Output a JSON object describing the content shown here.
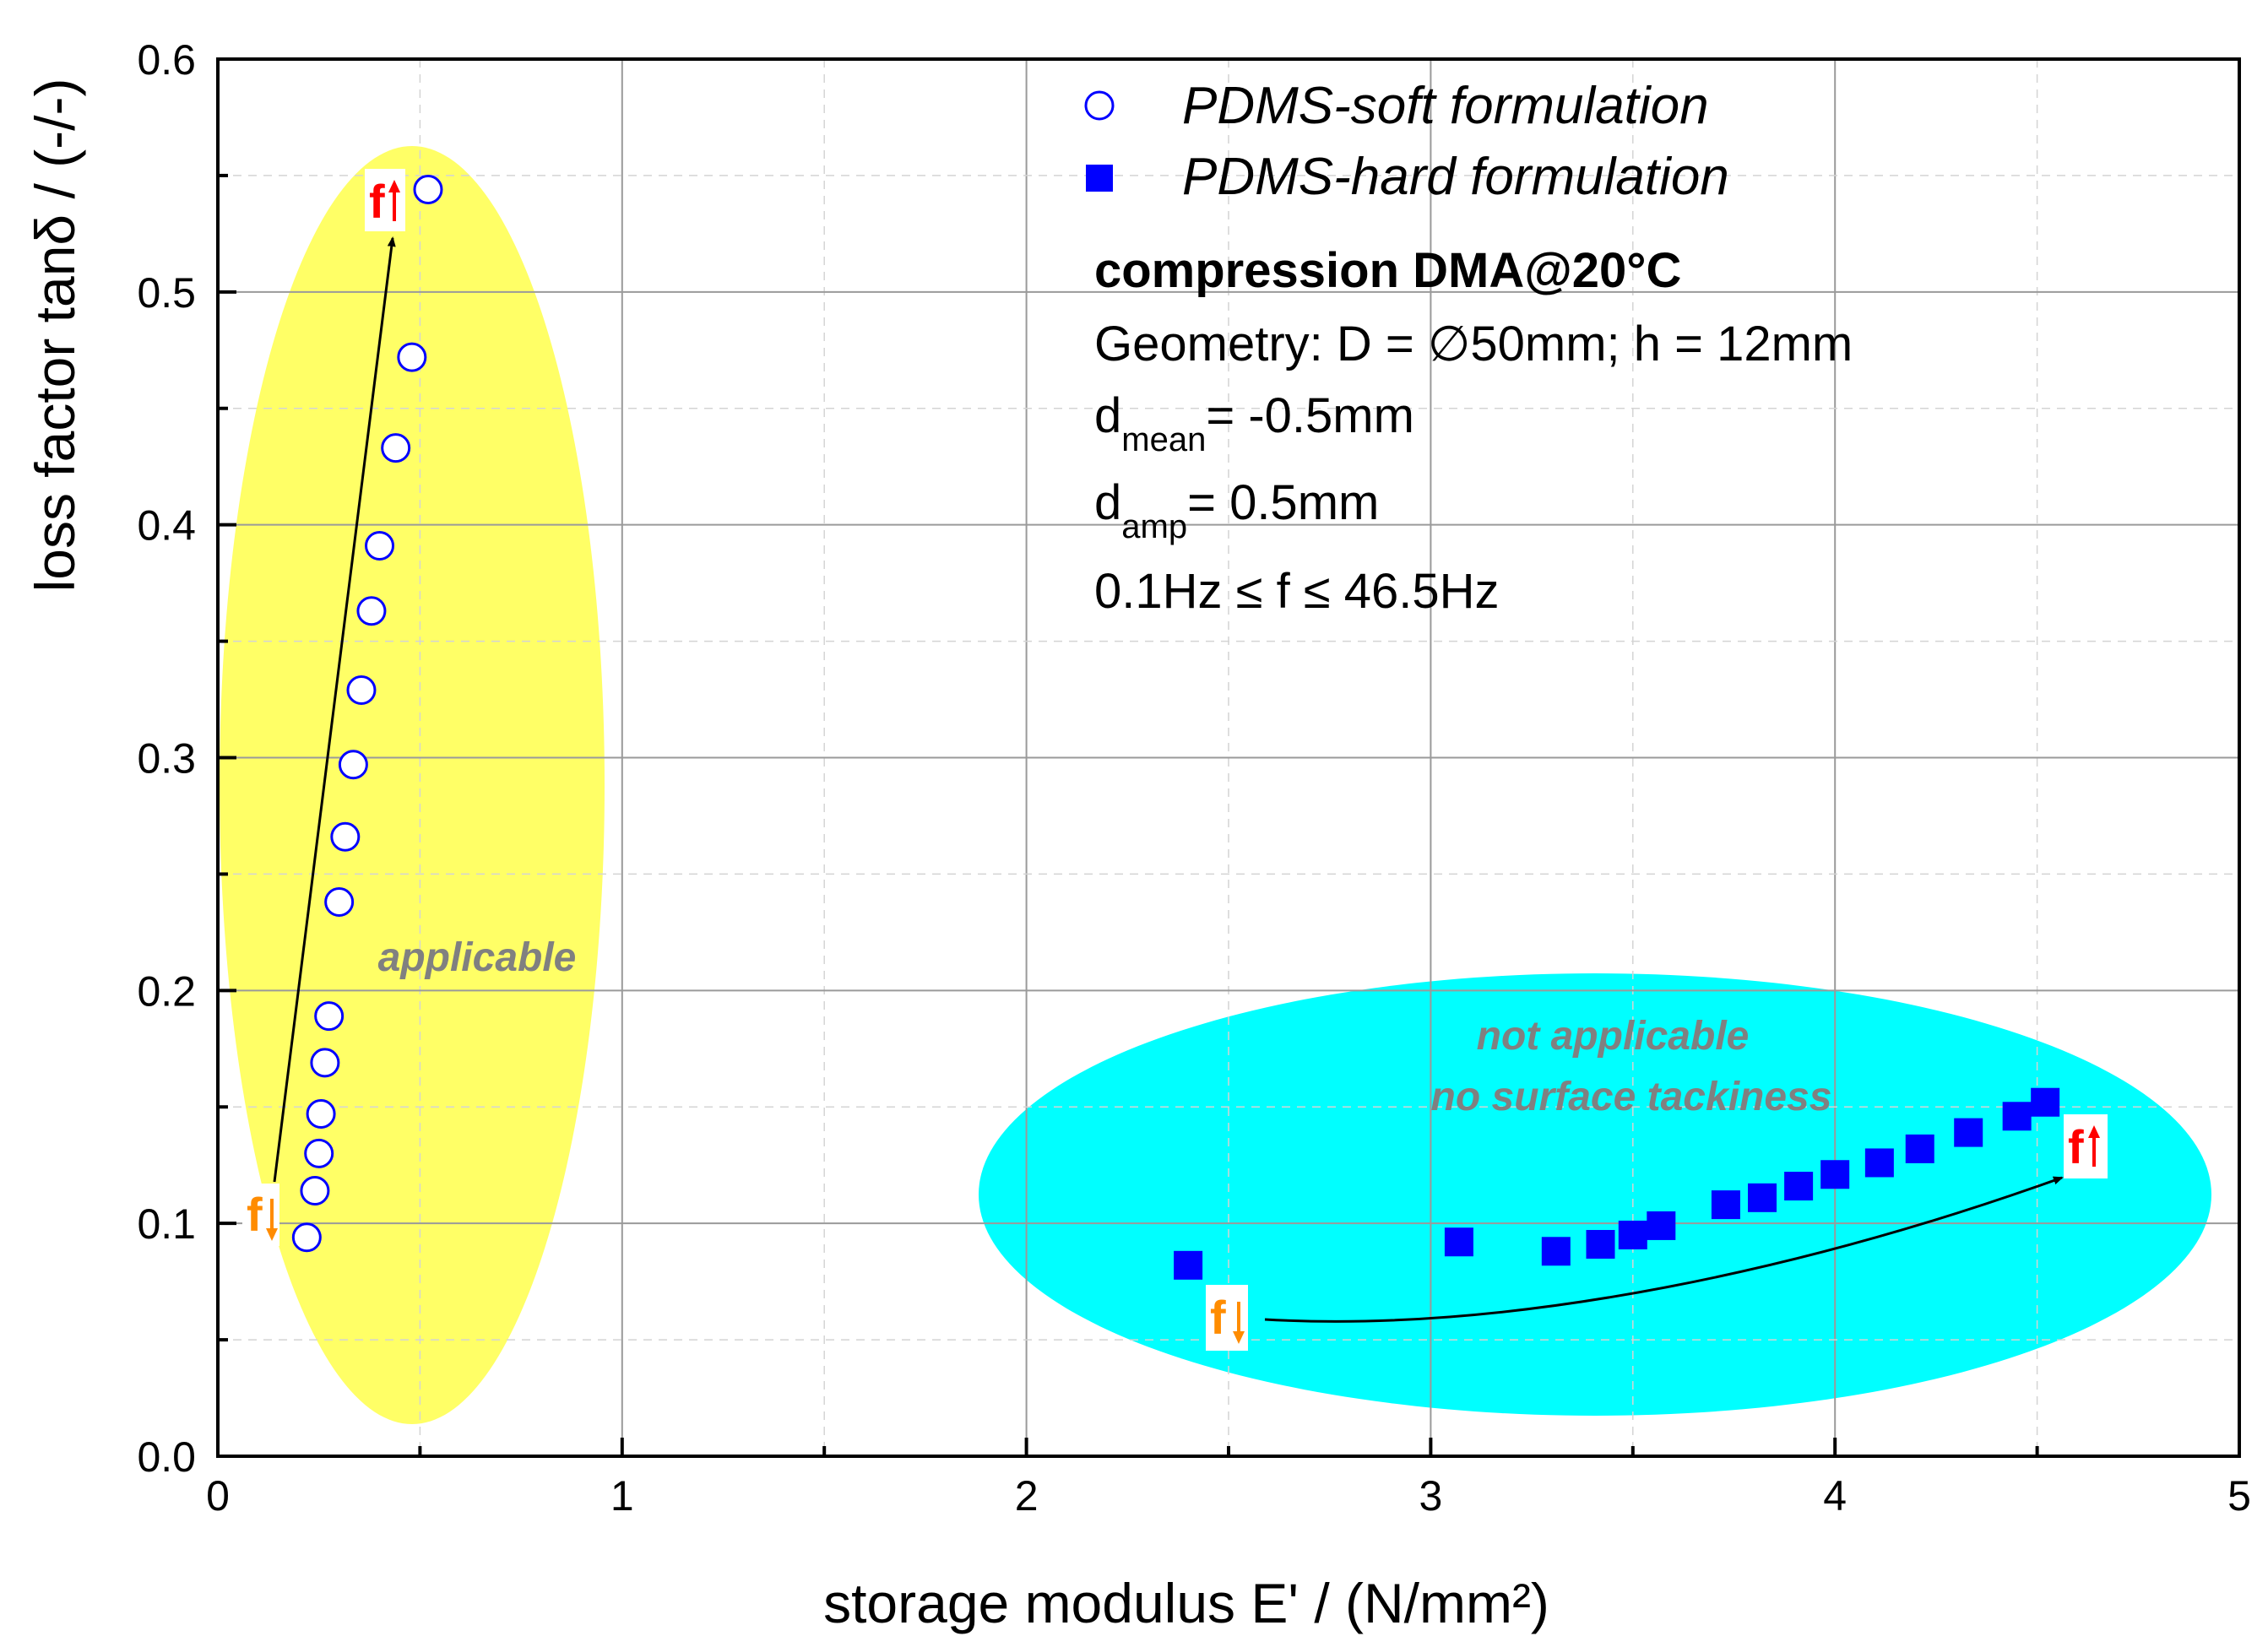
{
  "chart_data": {
    "type": "scatter",
    "xlabel": "storage modulus E' / (N/mm²)",
    "ylabel": "loss factor tanδ / (-/-)",
    "xlim": [
      0,
      5
    ],
    "ylim": [
      0,
      0.6
    ],
    "x_ticks": [
      "0",
      "1",
      "2",
      "3",
      "4",
      "5"
    ],
    "y_ticks": [
      "0.0",
      "0.1",
      "0.2",
      "0.3",
      "0.4",
      "0.5",
      "0.6"
    ],
    "grid": true,
    "legend_position": "top-right",
    "series": [
      {
        "name": "PDMS-soft formulation",
        "marker": "open-circle",
        "color": "#0000ff",
        "x": [
          0.22,
          0.24,
          0.25,
          0.255,
          0.265,
          0.275,
          0.3,
          0.315,
          0.335,
          0.355,
          0.38,
          0.4,
          0.44,
          0.48,
          0.52
        ],
        "y": [
          0.094,
          0.114,
          0.13,
          0.147,
          0.169,
          0.189,
          0.238,
          0.266,
          0.297,
          0.329,
          0.363,
          0.391,
          0.433,
          0.472,
          0.544
        ]
      },
      {
        "name": "PDMS-hard formulation",
        "marker": "filled-square",
        "color": "#0000ff",
        "x": [
          2.4,
          3.07,
          3.31,
          3.42,
          3.5,
          3.57,
          3.73,
          3.82,
          3.91,
          4.0,
          4.11,
          4.21,
          4.33,
          4.45,
          4.52
        ],
        "y": [
          0.082,
          0.092,
          0.088,
          0.091,
          0.095,
          0.099,
          0.108,
          0.111,
          0.116,
          0.121,
          0.126,
          0.132,
          0.139,
          0.146,
          0.152
        ]
      }
    ],
    "annotations": {
      "title": "compression DMA@20°C",
      "geometry": "Geometry: D = ∅50mm; h = 12mm",
      "dmean_main": "d",
      "dmean_sub": "mean",
      "dmean_value": "= -0.5mm",
      "damp_main": "d",
      "damp_sub": "amp",
      "damp_value": "= 0.5mm",
      "freq_range": "0.1Hz ≤ f ≤ 46.5Hz",
      "applicable_label": "applicable",
      "not_applicable_line1": "not applicable",
      "not_applicable_line2": "no surface tackiness",
      "freq_symbol": "f"
    },
    "colors": {
      "soft_region": "#ffff66",
      "hard_region": "#00ffff",
      "marker": "#0000ff",
      "freq_low": "#ff8c00",
      "freq_high": "#ff0000",
      "region_label": "#808080"
    }
  }
}
